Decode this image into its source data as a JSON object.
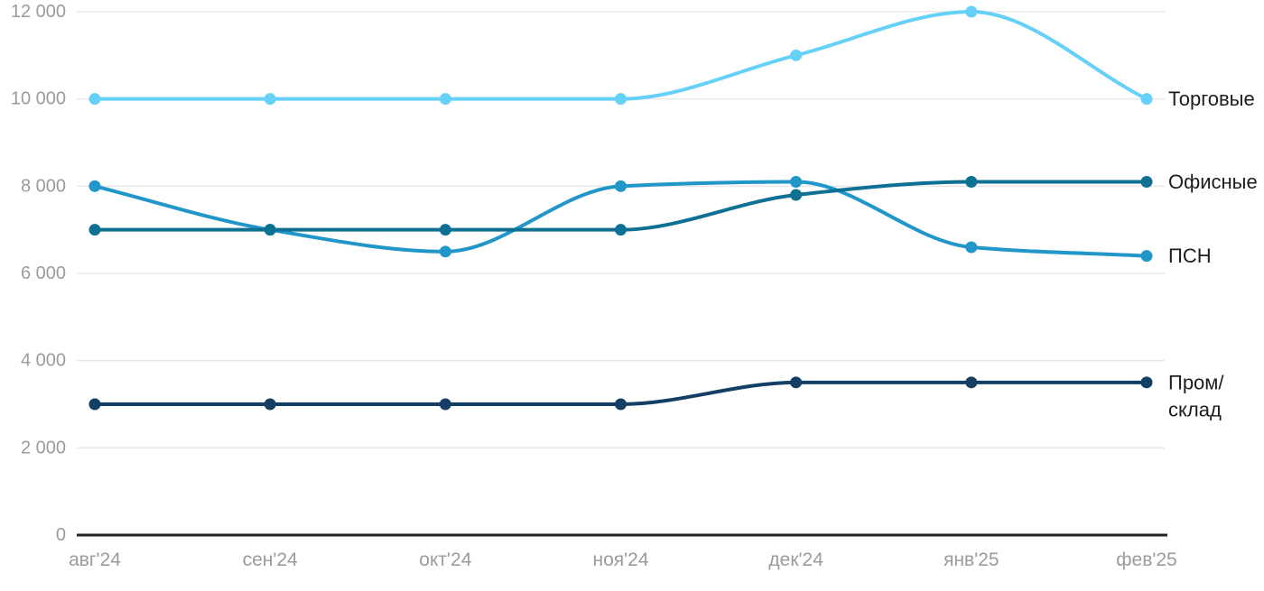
{
  "chart_data": {
    "type": "line",
    "title": "",
    "categories": [
      "авг'24",
      "сен'24",
      "окт'24",
      "ноя'24",
      "дек'24",
      "янв'25",
      "фев'25"
    ],
    "series": [
      {
        "name": "Торговые",
        "color": "#66D1F8",
        "values": [
          10000,
          10000,
          10000,
          10000,
          11000,
          12000,
          10000
        ],
        "label_lines": [
          "Торговые"
        ]
      },
      {
        "name": "ПСН",
        "color": "#2196C9",
        "values": [
          8000,
          7000,
          6500,
          8000,
          8100,
          6600,
          6400
        ],
        "label_lines": [
          "ПСН"
        ]
      },
      {
        "name": "Офисные",
        "color": "#0E7194",
        "values": [
          7000,
          7000,
          7000,
          7000,
          7800,
          8100,
          8100
        ],
        "label_lines": [
          "Офисные"
        ]
      },
      {
        "name": "Пром/склад",
        "color": "#123F63",
        "values": [
          3000,
          3000,
          3000,
          3000,
          3500,
          3500,
          3500
        ],
        "label_lines": [
          "Пром/",
          "склад"
        ]
      }
    ],
    "y_ticks": [
      {
        "value": 12000,
        "label": "12 000"
      },
      {
        "value": 10000,
        "label": "10 000"
      },
      {
        "value": 8000,
        "label": "8 000"
      },
      {
        "value": 6000,
        "label": "6 000"
      },
      {
        "value": 4000,
        "label": "4 000"
      },
      {
        "value": 2000,
        "label": "2 000"
      },
      {
        "value": 0,
        "label": "0"
      }
    ],
    "ylim": [
      0,
      12000
    ],
    "xlabel": "",
    "ylabel": "",
    "grid": true,
    "legend_position": "right-end-labels"
  },
  "styles": {
    "background": "#FFFFFF",
    "grid_color": "#E8E8E8",
    "axis_color": "#222222",
    "tick_label_color": "#9B9B9B",
    "series_label_color": "#1D1D1D"
  }
}
